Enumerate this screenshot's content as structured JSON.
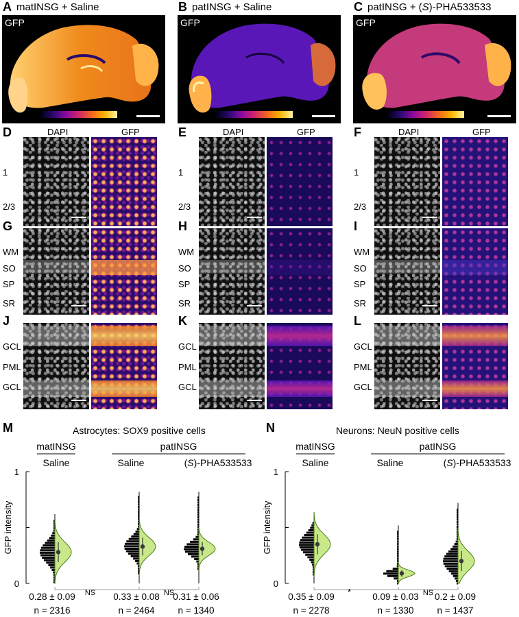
{
  "panels_top": [
    {
      "letter": "A",
      "title": "matINSG + Saline",
      "channel": "GFP",
      "tone": "bright"
    },
    {
      "letter": "B",
      "title": "patINSG + Saline",
      "channel": "GFP",
      "tone": "dim"
    },
    {
      "letter": "C",
      "title_prefix": "patINSG + (",
      "title_italic": "S",
      "title_suffix": ")-PHA533533",
      "channel": "GFP",
      "tone": "mid"
    }
  ],
  "micro_columns": [
    {
      "rows": [
        "D",
        "G",
        "J"
      ],
      "tone": "strong"
    },
    {
      "rows": [
        "E",
        "H",
        "K"
      ],
      "tone": "weak"
    },
    {
      "rows": [
        "F",
        "I",
        "L"
      ],
      "tone": "mid"
    }
  ],
  "channel_headers": {
    "dapi": "DAPI",
    "gfp": "GFP"
  },
  "layers": {
    "cortex": [
      "1",
      "2/3"
    ],
    "hippocampus": [
      "WM",
      "SO",
      "SP",
      "SR"
    ],
    "cerebellum": [
      "GCL",
      "PML",
      "GCL"
    ]
  },
  "chart_data": [
    {
      "type": "violin",
      "letter": "M",
      "title": "Astrocytes: SOX9 positive cells",
      "ylabel": "GFP intensity",
      "ylim": [
        0,
        1
      ],
      "yticks": [
        "0",
        "",
        "1"
      ],
      "group_headers": [
        {
          "label": "matINSG",
          "span": [
            0,
            0
          ]
        },
        {
          "label": "patINSG",
          "span": [
            1,
            2
          ]
        }
      ],
      "categories": [
        "Saline",
        "Saline",
        "(S)-PHA533533"
      ],
      "category_italic": [
        {
          "prefix": "",
          "italic": "",
          "suffix": "Saline"
        },
        {
          "prefix": "",
          "italic": "",
          "suffix": "Saline"
        },
        {
          "prefix": "(",
          "italic": "S",
          "suffix": ")-PHA533533"
        }
      ],
      "means": [
        0.28,
        0.33,
        0.31
      ],
      "sd": [
        0.09,
        0.08,
        0.06
      ],
      "max": [
        0.58,
        0.78,
        0.78
      ],
      "n": [
        2316,
        2464,
        1340
      ],
      "stat_labels": [
        "0.28 ± 0.09",
        "0.33 ± 0.08",
        "0.31 ± 0.06"
      ],
      "n_labels": [
        "n = 2316",
        "n = 2464",
        "n = 1340"
      ],
      "comparisons": [
        "NS",
        "NS"
      ]
    },
    {
      "type": "violin",
      "letter": "N",
      "title": "Neurons: NeuN positive cells",
      "ylabel": "GFP intensity",
      "ylim": [
        0,
        1
      ],
      "yticks": [
        "0",
        "",
        "1"
      ],
      "group_headers": [
        {
          "label": "matINSG",
          "span": [
            0,
            0
          ]
        },
        {
          "label": "patINSG",
          "span": [
            1,
            2
          ]
        }
      ],
      "categories": [
        "Saline",
        "Saline",
        "(S)-PHA533533"
      ],
      "category_italic": [
        {
          "prefix": "",
          "italic": "",
          "suffix": "Saline"
        },
        {
          "prefix": "",
          "italic": "",
          "suffix": "Saline"
        },
        {
          "prefix": "(",
          "italic": "S",
          "suffix": ")-PHA533533"
        }
      ],
      "means": [
        0.35,
        0.09,
        0.2
      ],
      "sd": [
        0.09,
        0.03,
        0.09
      ],
      "max": [
        0.55,
        0.48,
        0.68
      ],
      "n": [
        2278,
        1330,
        1437
      ],
      "stat_labels": [
        "0.35 ± 0.09",
        "0.09 ± 0.03",
        "0.2 ± 0.09"
      ],
      "n_labels": [
        "n = 2278",
        "n = 1330",
        "n = 1437"
      ],
      "comparisons": [
        "*",
        "NS"
      ]
    }
  ]
}
